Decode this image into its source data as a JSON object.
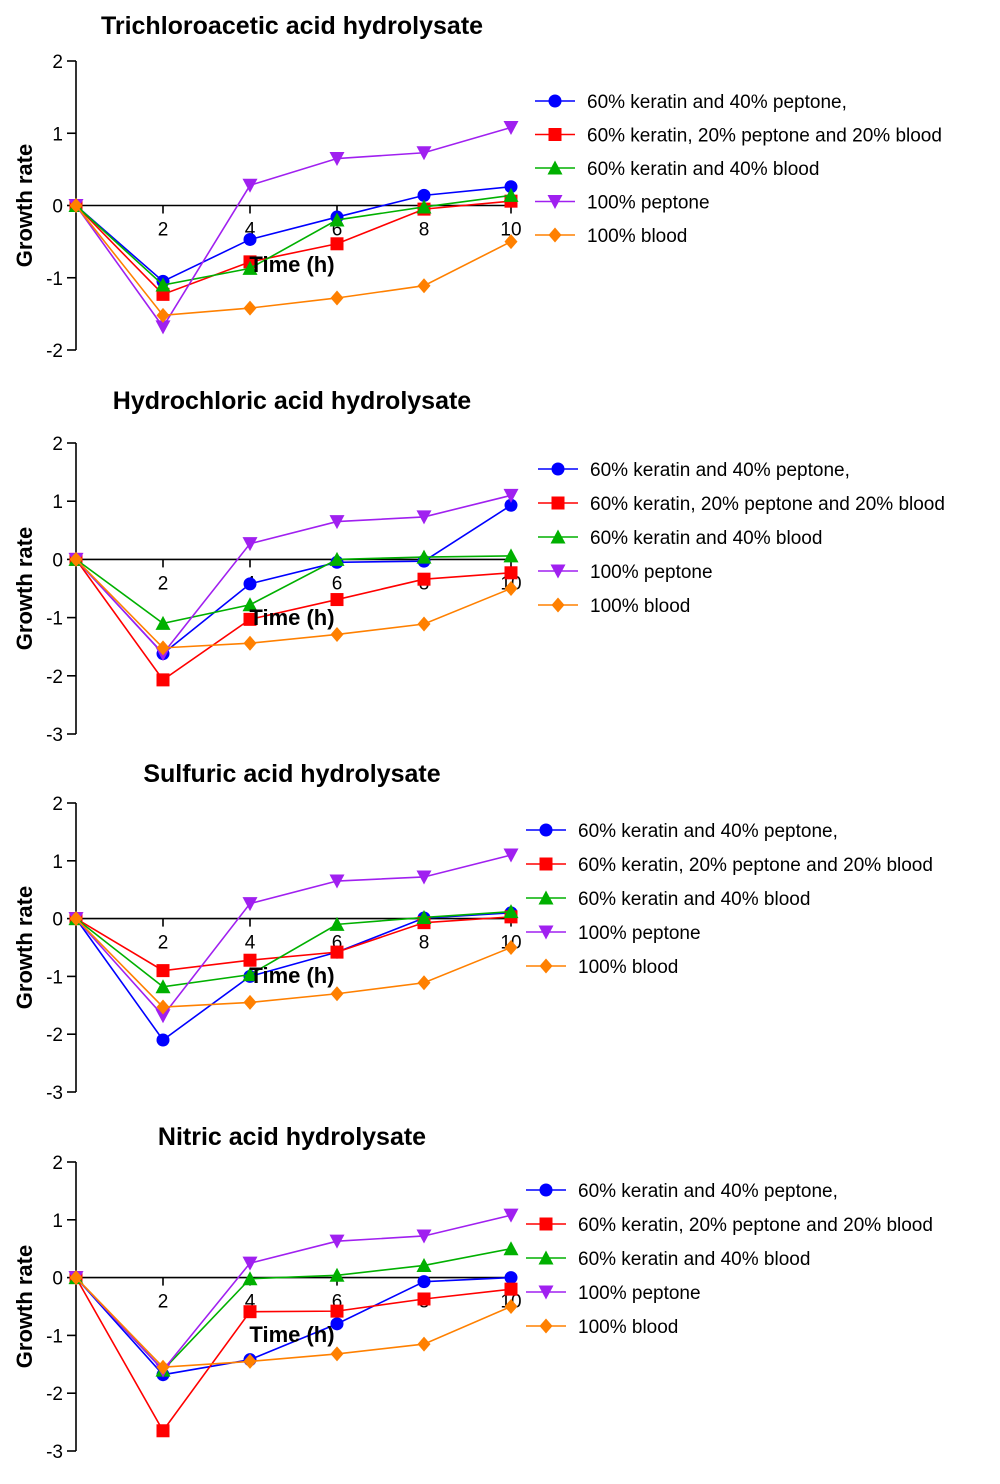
{
  "chart_data": [
    {
      "type": "line",
      "title": "Trichloroacetic acid hydrolysate",
      "xlabel": "Time (h)",
      "ylabel": "Growth rate",
      "x": [
        0,
        2,
        4,
        6,
        8,
        10
      ],
      "x_tick_labels": [
        "2",
        "4",
        "6",
        "8",
        "10"
      ],
      "y_tick_labels": [
        "2",
        "1",
        "0",
        "-1",
        "-2"
      ],
      "ylim": [
        -2,
        2
      ],
      "legend_position": "right",
      "series": [
        {
          "name": "60% keratin and 40% peptone,",
          "color": "#0000ff",
          "marker": "circle",
          "values": [
            0,
            -1.05,
            -0.47,
            -0.16,
            0.14,
            0.26
          ]
        },
        {
          "name": "60% keratin, 20% peptone and 20% blood",
          "color": "#ff0000",
          "marker": "square",
          "values": [
            0,
            -1.23,
            -0.78,
            -0.53,
            -0.05,
            0.06
          ]
        },
        {
          "name": "60% keratin and 40% blood",
          "color": "#00b000",
          "marker": "triangle-up",
          "values": [
            0,
            -1.1,
            -0.87,
            -0.2,
            -0.02,
            0.14
          ]
        },
        {
          "name": "100% peptone",
          "color": "#a020f0",
          "marker": "triangle-down",
          "values": [
            0,
            -1.68,
            0.28,
            0.65,
            0.73,
            1.08
          ]
        },
        {
          "name": "100% blood",
          "color": "#ff8000",
          "marker": "diamond",
          "values": [
            0,
            -1.52,
            -1.42,
            -1.28,
            -1.11,
            -0.5
          ]
        }
      ]
    },
    {
      "type": "line",
      "title": "Hydrochloric acid hydrolysate",
      "xlabel": "Time (h)",
      "ylabel": "Growth rate",
      "x": [
        0,
        2,
        4,
        6,
        8,
        10
      ],
      "x_tick_labels": [
        "2",
        "4",
        "6",
        "8",
        "10"
      ],
      "y_tick_labels": [
        "2",
        "1",
        "0",
        "-1",
        "-2",
        "-3"
      ],
      "ylim": [
        -3,
        2
      ],
      "legend_position": "right",
      "series": [
        {
          "name": "60% keratin and 40% peptone,",
          "color": "#0000ff",
          "marker": "circle",
          "values": [
            0,
            -1.62,
            -0.42,
            -0.05,
            -0.03,
            0.93
          ]
        },
        {
          "name": "60% keratin, 20% peptone and 20% blood",
          "color": "#ff0000",
          "marker": "square",
          "values": [
            0,
            -2.07,
            -1.03,
            -0.69,
            -0.34,
            -0.23
          ]
        },
        {
          "name": "60% keratin and 40% blood",
          "color": "#00b000",
          "marker": "triangle-up",
          "values": [
            0,
            -1.1,
            -0.78,
            0.0,
            0.04,
            0.06
          ]
        },
        {
          "name": "100% peptone",
          "color": "#a020f0",
          "marker": "triangle-down",
          "values": [
            0,
            -1.62,
            0.27,
            0.65,
            0.73,
            1.1
          ]
        },
        {
          "name": "100% blood",
          "color": "#ff8000",
          "marker": "diamond",
          "values": [
            0,
            -1.52,
            -1.44,
            -1.29,
            -1.11,
            -0.5
          ]
        }
      ]
    },
    {
      "type": "line",
      "title": "Sulfuric acid hydrolysate",
      "xlabel": "Time (h)",
      "ylabel": "Growth rate",
      "x": [
        0,
        2,
        4,
        6,
        8,
        10
      ],
      "x_tick_labels": [
        "2",
        "4",
        "6",
        "8",
        "10"
      ],
      "y_tick_labels": [
        "2",
        "1",
        "0",
        "-1",
        "-2",
        "-3"
      ],
      "ylim": [
        -3,
        2
      ],
      "legend_position": "right",
      "series": [
        {
          "name": "60% keratin and 40% peptone,",
          "color": "#0000ff",
          "marker": "circle",
          "values": [
            0,
            -2.1,
            -1.0,
            -0.58,
            0.01,
            0.1
          ]
        },
        {
          "name": "60% keratin, 20% peptone and 20% blood",
          "color": "#ff0000",
          "marker": "square",
          "values": [
            0,
            -0.9,
            -0.72,
            -0.58,
            -0.07,
            0.03
          ]
        },
        {
          "name": "60% keratin and 40% blood",
          "color": "#00b000",
          "marker": "triangle-up",
          "values": [
            0,
            -1.18,
            -0.97,
            -0.1,
            0.02,
            0.12
          ]
        },
        {
          "name": "100% peptone",
          "color": "#a020f0",
          "marker": "triangle-down",
          "values": [
            0,
            -1.68,
            0.26,
            0.65,
            0.72,
            1.1
          ]
        },
        {
          "name": "100% blood",
          "color": "#ff8000",
          "marker": "diamond",
          "values": [
            0,
            -1.53,
            -1.45,
            -1.3,
            -1.11,
            -0.5
          ]
        }
      ]
    },
    {
      "type": "line",
      "title": "Nitric acid hydrolysate",
      "xlabel": "Time (h)",
      "ylabel": "Growth rate",
      "x": [
        0,
        2,
        4,
        6,
        8,
        10
      ],
      "x_tick_labels": [
        "2",
        "4",
        "6",
        "8",
        "10"
      ],
      "y_tick_labels": [
        "2",
        "1",
        "0",
        "-1",
        "-2",
        "-3"
      ],
      "ylim": [
        -3,
        2
      ],
      "legend_position": "right",
      "series": [
        {
          "name": "60% keratin and 40% peptone,",
          "color": "#0000ff",
          "marker": "circle",
          "values": [
            0,
            -1.68,
            -1.42,
            -0.8,
            -0.07,
            0.0
          ]
        },
        {
          "name": "60% keratin, 20% peptone and 20% blood",
          "color": "#ff0000",
          "marker": "square",
          "values": [
            0,
            -2.65,
            -0.59,
            -0.58,
            -0.37,
            -0.2
          ]
        },
        {
          "name": "60% keratin and 40% blood",
          "color": "#00b000",
          "marker": "triangle-up",
          "values": [
            0,
            -1.6,
            -0.02,
            0.04,
            0.21,
            0.5
          ]
        },
        {
          "name": "100% peptone",
          "color": "#a020f0",
          "marker": "triangle-down",
          "values": [
            0,
            -1.6,
            0.25,
            0.63,
            0.72,
            1.08
          ]
        },
        {
          "name": "100% blood",
          "color": "#ff8000",
          "marker": "diamond",
          "values": [
            0,
            -1.55,
            -1.45,
            -1.32,
            -1.15,
            -0.5
          ]
        }
      ]
    }
  ]
}
